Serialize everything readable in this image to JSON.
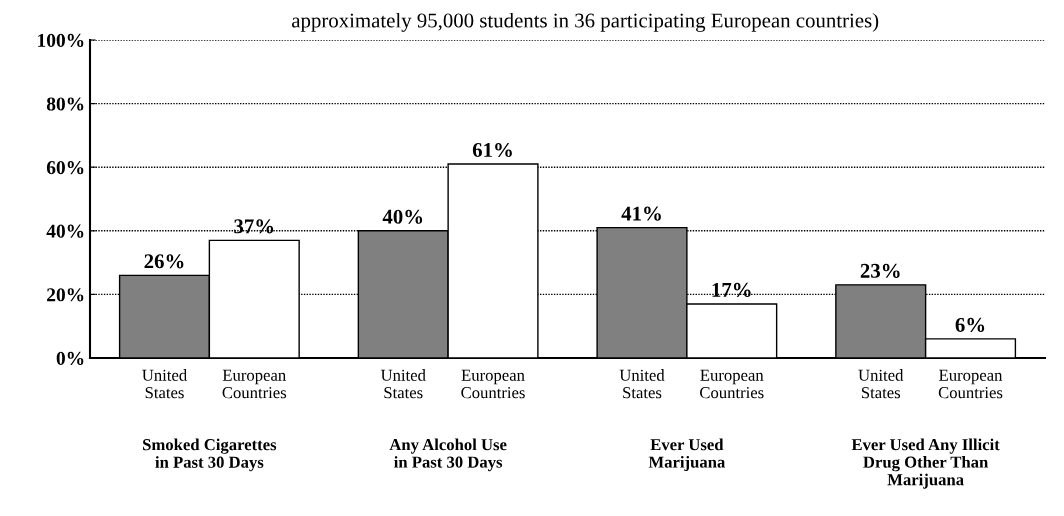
{
  "chart_data": {
    "type": "bar",
    "subtitle": "approximately 95,000 students in 36 participating European countries)",
    "categories": [
      "Smoked Cigarettes\nin Past 30 Days",
      "Any Alcohol Use\nin Past 30 Days",
      "Ever Used\nMarijuana",
      "Ever Used Any Illicit\nDrug Other Than\nMarijuana"
    ],
    "series": [
      {
        "name": "United States",
        "color": "#808080",
        "values": [
          26,
          40,
          41,
          23
        ],
        "value_labels": [
          "26%",
          "40%",
          "41%",
          "23%"
        ]
      },
      {
        "name": "European Countries",
        "color": "#ffffff",
        "values": [
          37,
          61,
          17,
          6
        ],
        "value_labels": [
          "37%",
          "61%",
          "17%",
          "6%"
        ]
      }
    ],
    "ylim": [
      0,
      100
    ],
    "yticks": [
      {
        "value": 0,
        "label": "0%"
      },
      {
        "value": 20,
        "label": "20%"
      },
      {
        "value": 40,
        "label": "40%"
      },
      {
        "value": 60,
        "label": "60%"
      },
      {
        "value": 80,
        "label": "80%"
      },
      {
        "value": 100,
        "label": "100%"
      }
    ],
    "grid": "y"
  }
}
